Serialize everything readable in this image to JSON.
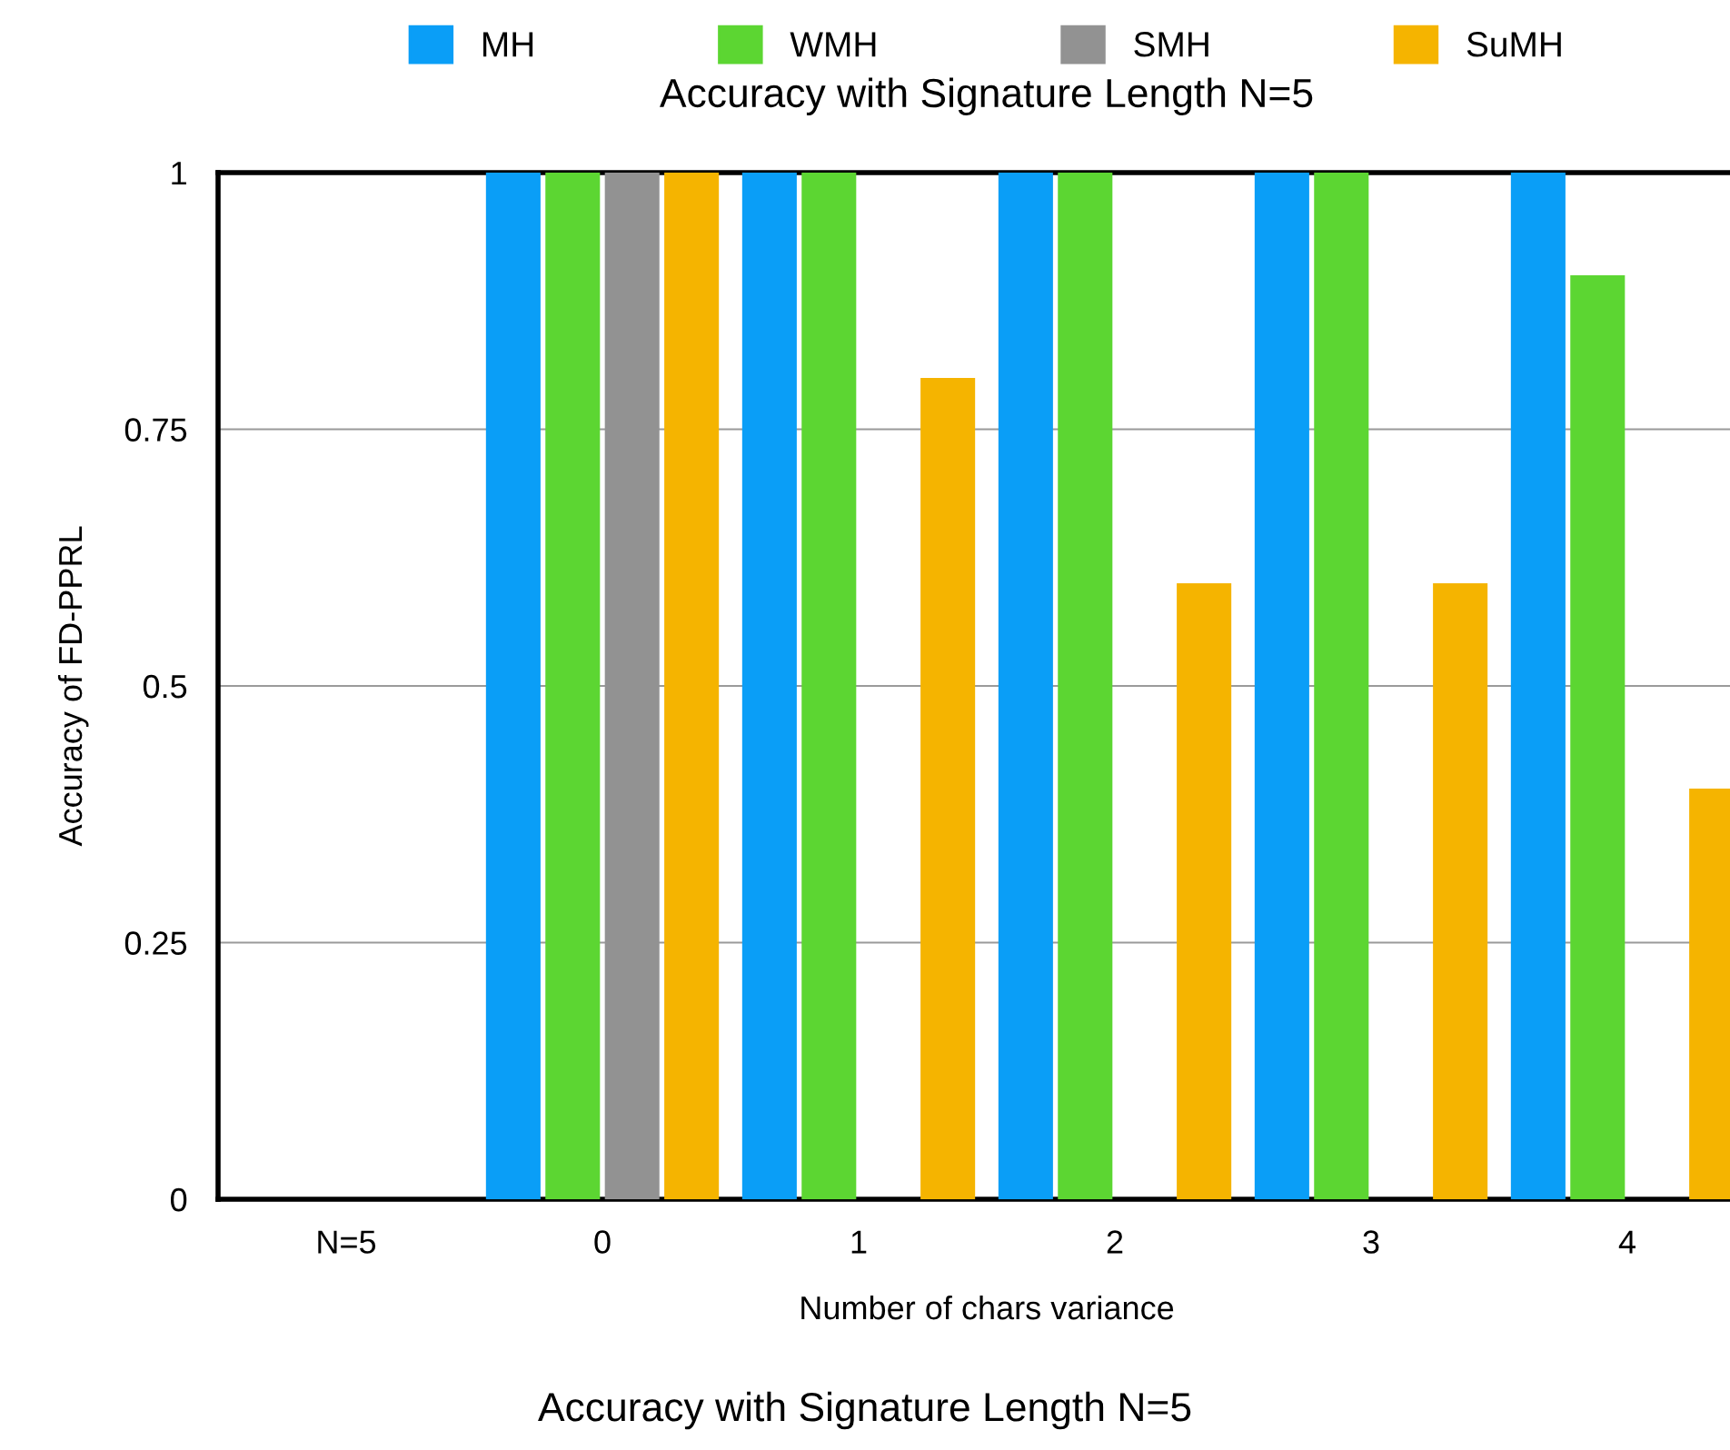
{
  "chart_data": {
    "type": "bar",
    "title": "Accuracy with Signature Length N=5",
    "xlabel": "Number of chars variance",
    "ylabel": "Accuracy of FD-PPRL",
    "categories": [
      "N=5",
      "0",
      "1",
      "2",
      "3",
      "4"
    ],
    "series": [
      {
        "name": "MH",
        "color": "#0a9ef7",
        "values": [
          null,
          1,
          1,
          1,
          1,
          1
        ]
      },
      {
        "name": "WMH",
        "color": "#5cd632",
        "values": [
          null,
          1,
          1,
          1,
          1,
          0.9
        ]
      },
      {
        "name": "SMH",
        "color": "#929292",
        "values": [
          null,
          1,
          0,
          0,
          0,
          0
        ]
      },
      {
        "name": "SuMH",
        "color": "#f5b400",
        "values": [
          null,
          1,
          0.8,
          0.6,
          0.6,
          0.4
        ]
      }
    ],
    "ylim": [
      0,
      1
    ],
    "yticks": [
      0,
      0.25,
      0.5,
      0.75,
      1
    ],
    "grid": "y",
    "legend": "top",
    "annotations": [
      "Accuracy with Signature Length N=5"
    ]
  }
}
